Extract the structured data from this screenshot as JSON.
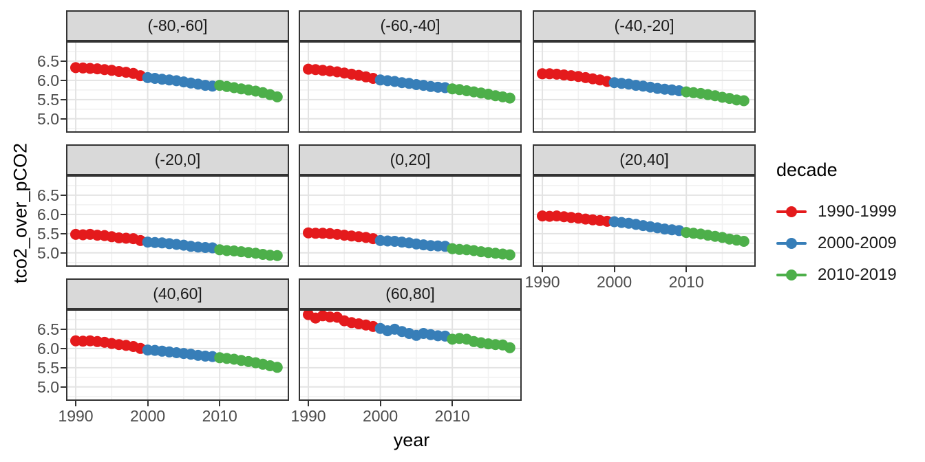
{
  "figure": {
    "y_axis_title": "tco2_over_pCO2",
    "x_axis_title": "year"
  },
  "legend": {
    "title": "decade",
    "entries": [
      {
        "label": "1990-1999",
        "color": "#E41A1C",
        "from": 1990,
        "to": 1999
      },
      {
        "label": "2000-2009",
        "color": "#377EB8",
        "from": 2000,
        "to": 2009
      },
      {
        "label": "2010-2019",
        "color": "#4DAF4A",
        "from": 2010,
        "to": 2018
      }
    ]
  },
  "chart_data": {
    "type": "scatter",
    "title": "",
    "xlabel": "year",
    "ylabel": "tco2_over_pCO2",
    "facet_variable": "latitude band",
    "color_variable": "decade",
    "grid": "on",
    "legend_position": "right",
    "x_ticks": [
      1990,
      2000,
      2010
    ],
    "x_minor_ticks": [
      1995,
      2005,
      2015
    ],
    "y_ticks": [
      5.0,
      5.5,
      6.0,
      6.5
    ],
    "y_minor_ticks": [
      4.75,
      5.25,
      5.75,
      6.25,
      6.75
    ],
    "x_domain": [
      1988.85,
      2019.45
    ],
    "y_domain": [
      4.675,
      6.98
    ],
    "years": [
      1990,
      1991,
      1992,
      1993,
      1994,
      1995,
      1996,
      1997,
      1998,
      1999,
      2000,
      2001,
      2002,
      2003,
      2004,
      2005,
      2006,
      2007,
      2008,
      2009,
      2010,
      2011,
      2012,
      2013,
      2014,
      2015,
      2016,
      2017,
      2018
    ],
    "panels": [
      {
        "label": "(-80,-60]",
        "row": 0,
        "col": 0,
        "values": [
          6.33,
          6.32,
          6.31,
          6.3,
          6.28,
          6.26,
          6.23,
          6.21,
          6.18,
          6.12,
          6.07,
          6.05,
          6.03,
          6.01,
          5.99,
          5.96,
          5.93,
          5.9,
          5.87,
          5.85,
          5.87,
          5.84,
          5.81,
          5.78,
          5.75,
          5.72,
          5.68,
          5.63,
          5.57
        ]
      },
      {
        "label": "(-60,-40]",
        "row": 0,
        "col": 1,
        "values": [
          6.29,
          6.28,
          6.26,
          6.24,
          6.22,
          6.19,
          6.16,
          6.13,
          6.09,
          6.05,
          6.01,
          5.99,
          5.97,
          5.94,
          5.92,
          5.89,
          5.87,
          5.84,
          5.82,
          5.81,
          5.78,
          5.76,
          5.73,
          5.7,
          5.67,
          5.64,
          5.6,
          5.57,
          5.54
        ]
      },
      {
        "label": "(-40,-20]",
        "row": 0,
        "col": 2,
        "values": [
          6.17,
          6.17,
          6.16,
          6.14,
          6.12,
          6.1,
          6.07,
          6.04,
          6.01,
          5.97,
          5.94,
          5.92,
          5.9,
          5.87,
          5.85,
          5.82,
          5.79,
          5.77,
          5.75,
          5.73,
          5.7,
          5.68,
          5.66,
          5.63,
          5.6,
          5.56,
          5.53,
          5.49,
          5.47
        ]
      },
      {
        "label": "(-20,0]",
        "row": 1,
        "col": 0,
        "values": [
          5.48,
          5.47,
          5.48,
          5.46,
          5.45,
          5.42,
          5.39,
          5.38,
          5.37,
          5.32,
          5.28,
          5.27,
          5.26,
          5.24,
          5.22,
          5.2,
          5.17,
          5.15,
          5.14,
          5.13,
          5.08,
          5.06,
          5.05,
          5.03,
          5.01,
          4.99,
          4.96,
          4.94,
          4.93
        ]
      },
      {
        "label": "(0,20]",
        "row": 1,
        "col": 1,
        "values": [
          5.52,
          5.51,
          5.51,
          5.5,
          5.48,
          5.46,
          5.44,
          5.42,
          5.4,
          5.37,
          5.32,
          5.31,
          5.3,
          5.28,
          5.26,
          5.23,
          5.21,
          5.19,
          5.18,
          5.17,
          5.11,
          5.09,
          5.08,
          5.06,
          5.03,
          5.01,
          4.99,
          4.97,
          4.95
        ]
      },
      {
        "label": "(20,40]",
        "row": 1,
        "col": 2,
        "values": [
          5.96,
          5.95,
          5.96,
          5.94,
          5.92,
          5.9,
          5.88,
          5.86,
          5.84,
          5.82,
          5.81,
          5.79,
          5.77,
          5.74,
          5.71,
          5.68,
          5.65,
          5.62,
          5.6,
          5.58,
          5.53,
          5.51,
          5.49,
          5.46,
          5.43,
          5.4,
          5.36,
          5.33,
          5.3
        ]
      },
      {
        "label": "(40,60]",
        "row": 2,
        "col": 0,
        "values": [
          6.2,
          6.19,
          6.2,
          6.18,
          6.16,
          6.13,
          6.1,
          6.08,
          6.05,
          6.0,
          5.96,
          5.95,
          5.93,
          5.91,
          5.89,
          5.87,
          5.85,
          5.82,
          5.8,
          5.79,
          5.76,
          5.74,
          5.72,
          5.69,
          5.66,
          5.63,
          5.59,
          5.55,
          5.51
        ]
      },
      {
        "label": "(60,80]",
        "row": 2,
        "col": 1,
        "values": [
          6.88,
          6.79,
          6.85,
          6.82,
          6.81,
          6.72,
          6.67,
          6.64,
          6.61,
          6.57,
          6.52,
          6.46,
          6.5,
          6.44,
          6.39,
          6.34,
          6.39,
          6.36,
          6.33,
          6.32,
          6.24,
          6.26,
          6.24,
          6.18,
          6.15,
          6.12,
          6.1,
          6.09,
          6.02
        ]
      }
    ],
    "colors": {
      "point_red": "#E41A1C",
      "point_blue": "#377EB8",
      "point_green": "#4DAF4A",
      "strip_fill": "#D9D9D9",
      "panel_border": "#333333",
      "grid_major": "#E3E3E3",
      "grid_minor": "#F1F1F1",
      "tick_text": "#4D4D4D"
    }
  }
}
